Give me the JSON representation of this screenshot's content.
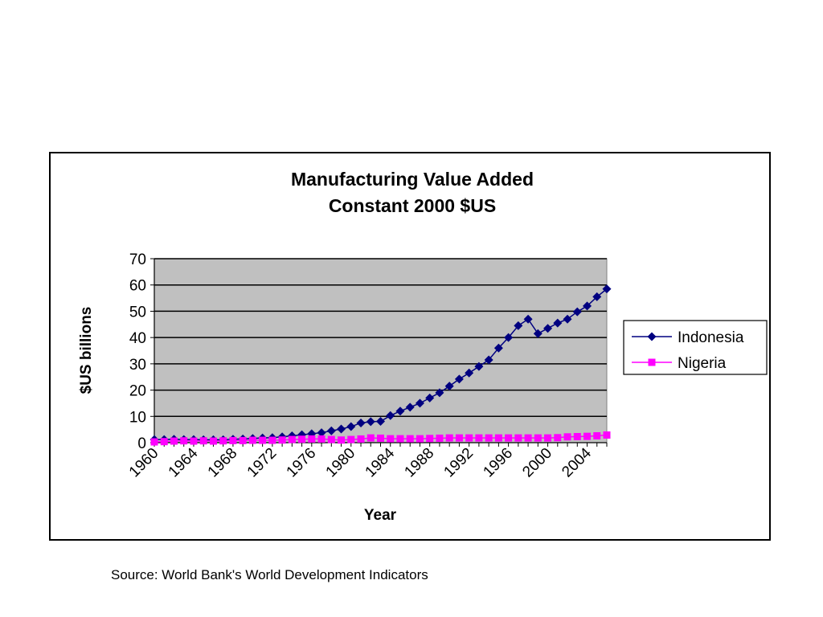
{
  "chart_data": {
    "type": "line",
    "title": "Manufacturing Value Added",
    "subtitle": "Constant 2000 $US",
    "xlabel": "Year",
    "ylabel": "$US billions",
    "ylim": [
      0,
      70
    ],
    "yticks": [
      0,
      10,
      20,
      30,
      40,
      50,
      60,
      70
    ],
    "xlim": [
      1960,
      2006
    ],
    "xticks": [
      "1960",
      "1964",
      "1968",
      "1972",
      "1976",
      "1980",
      "1984",
      "1988",
      "1992",
      "1996",
      "2000",
      "2004"
    ],
    "grid": "horizontal",
    "plot_background": "#c0c0c0",
    "legend": "right",
    "x": [
      1960,
      1961,
      1962,
      1963,
      1964,
      1965,
      1966,
      1967,
      1968,
      1969,
      1970,
      1971,
      1972,
      1973,
      1974,
      1975,
      1976,
      1977,
      1978,
      1979,
      1980,
      1981,
      1982,
      1983,
      1984,
      1985,
      1986,
      1987,
      1988,
      1989,
      1990,
      1991,
      1992,
      1993,
      1994,
      1995,
      1996,
      1997,
      1998,
      1999,
      2000,
      2001,
      2002,
      2003,
      2004,
      2005,
      2006
    ],
    "series": [
      {
        "name": "Indonesia",
        "color": "#000080",
        "marker": "diamond",
        "values": [
          1.2,
          1.2,
          1.3,
          1.2,
          1.2,
          1.1,
          1.1,
          1.1,
          1.3,
          1.4,
          1.6,
          1.8,
          1.9,
          2.2,
          2.6,
          3.0,
          3.4,
          3.8,
          4.5,
          5.2,
          6.1,
          7.5,
          8.0,
          8.1,
          10.3,
          12.0,
          13.5,
          15.0,
          17.0,
          19.0,
          21.5,
          24.2,
          26.5,
          29.0,
          31.5,
          36.0,
          40.0,
          44.5,
          47.0,
          41.5,
          43.5,
          45.5,
          47.0,
          49.8,
          52.0,
          55.5,
          58.5
        ]
      },
      {
        "name": "Nigeria",
        "color": "#ff00ff",
        "marker": "square",
        "values": [
          0.3,
          0.4,
          0.6,
          0.7,
          0.6,
          0.7,
          0.6,
          0.7,
          0.8,
          0.8,
          0.9,
          0.9,
          0.9,
          1.0,
          1.2,
          1.3,
          1.4,
          1.4,
          1.2,
          1.0,
          1.2,
          1.4,
          1.8,
          1.7,
          1.5,
          1.5,
          1.5,
          1.5,
          1.6,
          1.7,
          1.8,
          1.8,
          1.8,
          1.8,
          1.8,
          1.8,
          1.8,
          1.8,
          1.8,
          1.8,
          1.8,
          1.9,
          2.2,
          2.3,
          2.4,
          2.6,
          2.9
        ]
      }
    ]
  },
  "footer": {
    "source": "Source: World Bank's World Development Indicators"
  }
}
